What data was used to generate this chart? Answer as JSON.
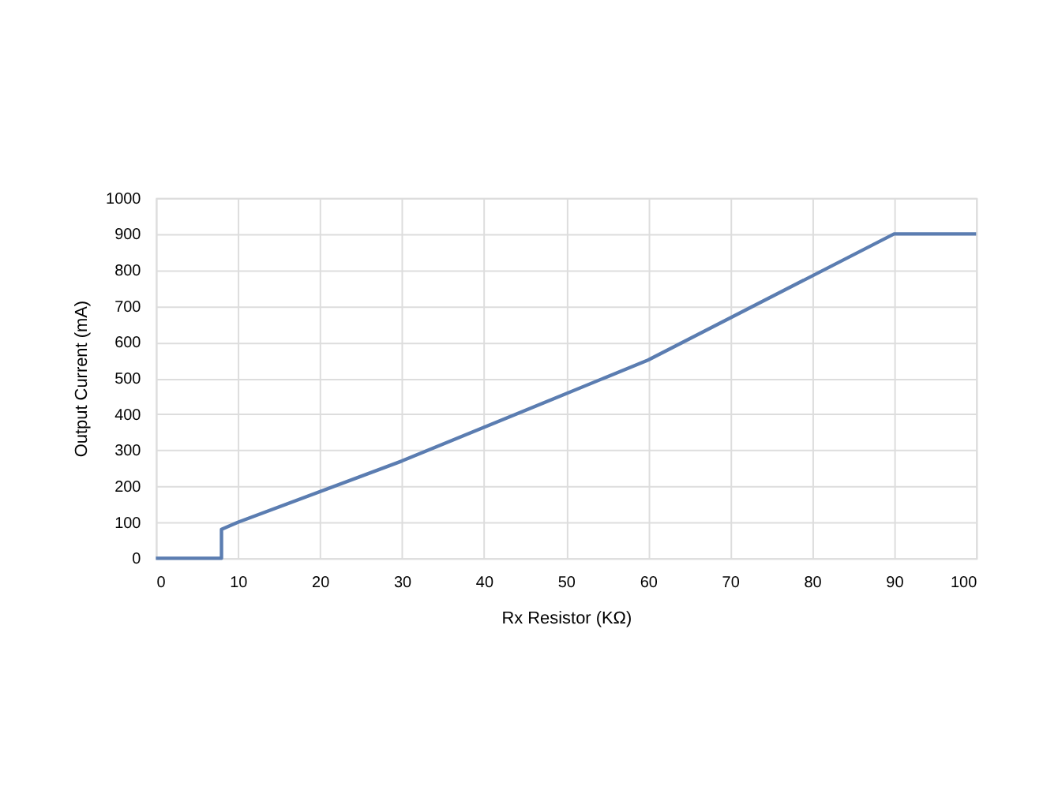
{
  "chart_data": {
    "type": "line",
    "xlabel": "Rx Resistor (KΩ)",
    "ylabel": "Output Current (mA)",
    "x": [
      0,
      8,
      8,
      10,
      30,
      60,
      90,
      100
    ],
    "series": [
      {
        "color": "#5b7db1",
        "values": [
          0,
          0,
          80,
          100,
          270,
          550,
          900,
          900
        ]
      }
    ],
    "xlim": [
      0,
      100
    ],
    "xticks": [
      0,
      10,
      20,
      30,
      40,
      50,
      60,
      70,
      80,
      90,
      100
    ],
    "ylim": [
      0,
      1000
    ],
    "yticks": [
      0,
      100,
      200,
      300,
      400,
      500,
      600,
      700,
      800,
      900,
      1000
    ],
    "grid": true,
    "marker": "none",
    "line_style": "solid"
  }
}
